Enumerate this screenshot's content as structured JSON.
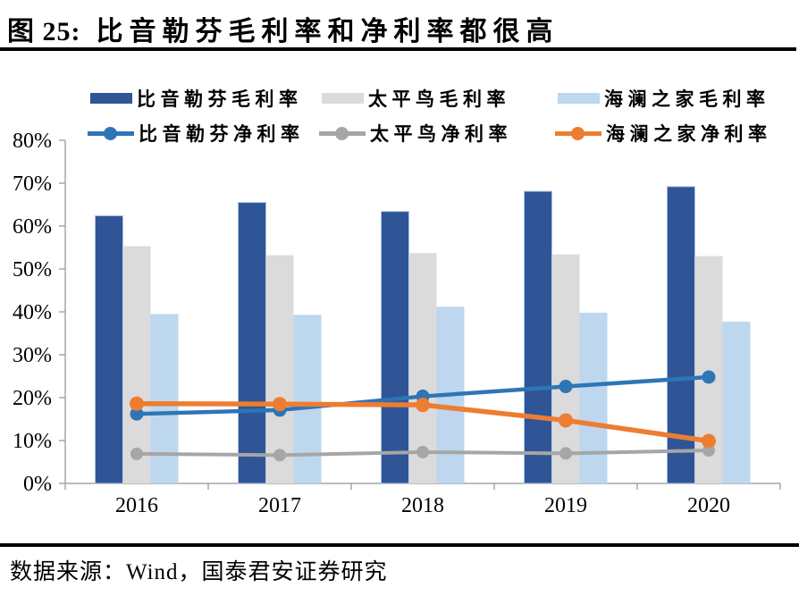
{
  "header": {
    "figure_label": "图 25:",
    "title": "比音勒芬毛利率和净利率都很高"
  },
  "source_text": "数据来源：Wind，国泰君安证券研究",
  "chart_data": {
    "type": "combo_bar_line",
    "title": "比音勒芬毛利率和净利率都很高",
    "categories": [
      "2016",
      "2017",
      "2018",
      "2019",
      "2020"
    ],
    "bar_series": [
      {
        "key": "biyinlefen-gross",
        "name": "比音勒芬毛利率",
        "color": "#2F5597",
        "edge_color": "#A9C1E4",
        "values": [
          62.4,
          65.5,
          63.4,
          68.1,
          69.2
        ]
      },
      {
        "key": "taipingniao-gross",
        "name": "太平鸟毛利率",
        "color": "#DBDBDB",
        "edge_color": "",
        "values": [
          55.3,
          53.2,
          53.7,
          53.4,
          53.0
        ]
      },
      {
        "key": "hailanzhijia-gross",
        "name": "海澜之家毛利率",
        "color": "#BDD7EE",
        "edge_color": "",
        "values": [
          39.5,
          39.3,
          41.2,
          39.8,
          37.7
        ]
      }
    ],
    "line_series": [
      {
        "key": "biyinlefen-net",
        "name": "比音勒芬净利率",
        "color": "#2E75B6",
        "line_width": 4.5,
        "marker_radius": 7.5,
        "values": [
          16.2,
          17.1,
          20.3,
          22.6,
          24.8
        ]
      },
      {
        "key": "taipingniao-net",
        "name": "太平鸟净利率",
        "color": "#A6A6A6",
        "line_width": 4,
        "marker_radius": 7,
        "values": [
          6.9,
          6.6,
          7.3,
          7.0,
          7.7
        ]
      },
      {
        "key": "hailanzhijia-net",
        "name": "海澜之家净利率",
        "color": "#ED7D31",
        "line_width": 5.5,
        "marker_radius": 8,
        "values": [
          18.6,
          18.5,
          18.3,
          14.7,
          9.9
        ]
      }
    ],
    "xlabel": "",
    "ylabel": "",
    "ylim": [
      0,
      80
    ],
    "ytick_step": 10,
    "ytick_suffix": "%",
    "grid": false,
    "legend_position": "top",
    "axis_color": "#A6A6A6",
    "text_color": "#000000"
  }
}
